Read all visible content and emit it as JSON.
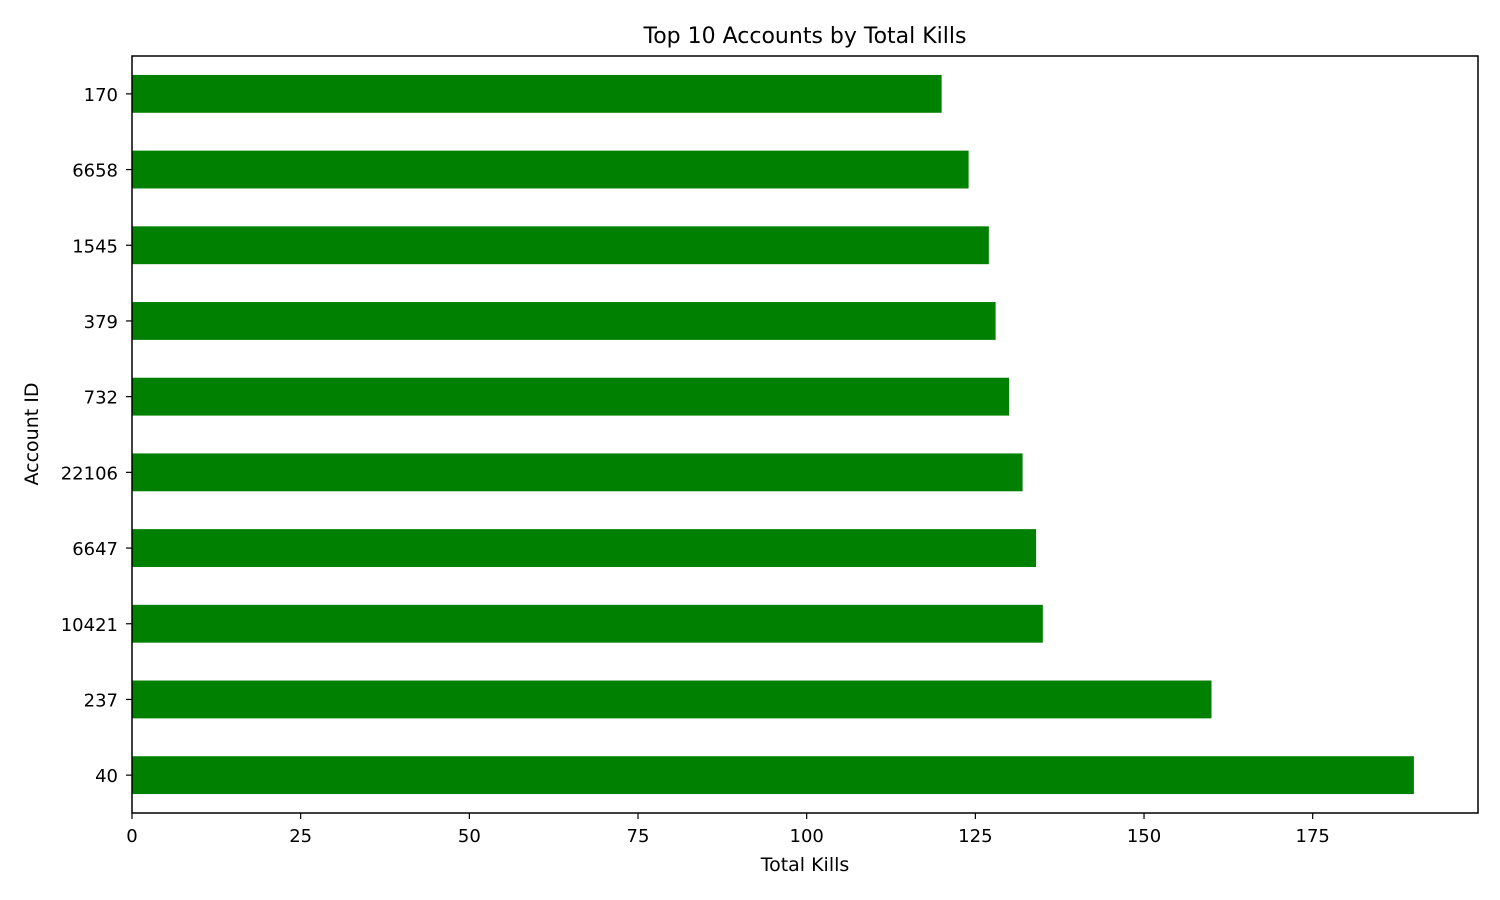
{
  "chart_data": {
    "type": "bar",
    "orientation": "horizontal",
    "title": "Top 10 Accounts by Total Kills",
    "xlabel": "Total Kills",
    "ylabel": "Account ID",
    "categories": [
      "40",
      "237",
      "10421",
      "6647",
      "22106",
      "732",
      "379",
      "1545",
      "6658",
      "170"
    ],
    "series": [
      {
        "values": [
          190,
          160,
          135,
          134,
          132,
          130,
          128,
          127,
          124,
          120
        ]
      }
    ],
    "xlim": [
      0,
      199.5
    ],
    "xticks": [
      0,
      25,
      50,
      75,
      100,
      125,
      150,
      175
    ],
    "bar_color": "#008000",
    "grid": false,
    "legend": "none"
  }
}
